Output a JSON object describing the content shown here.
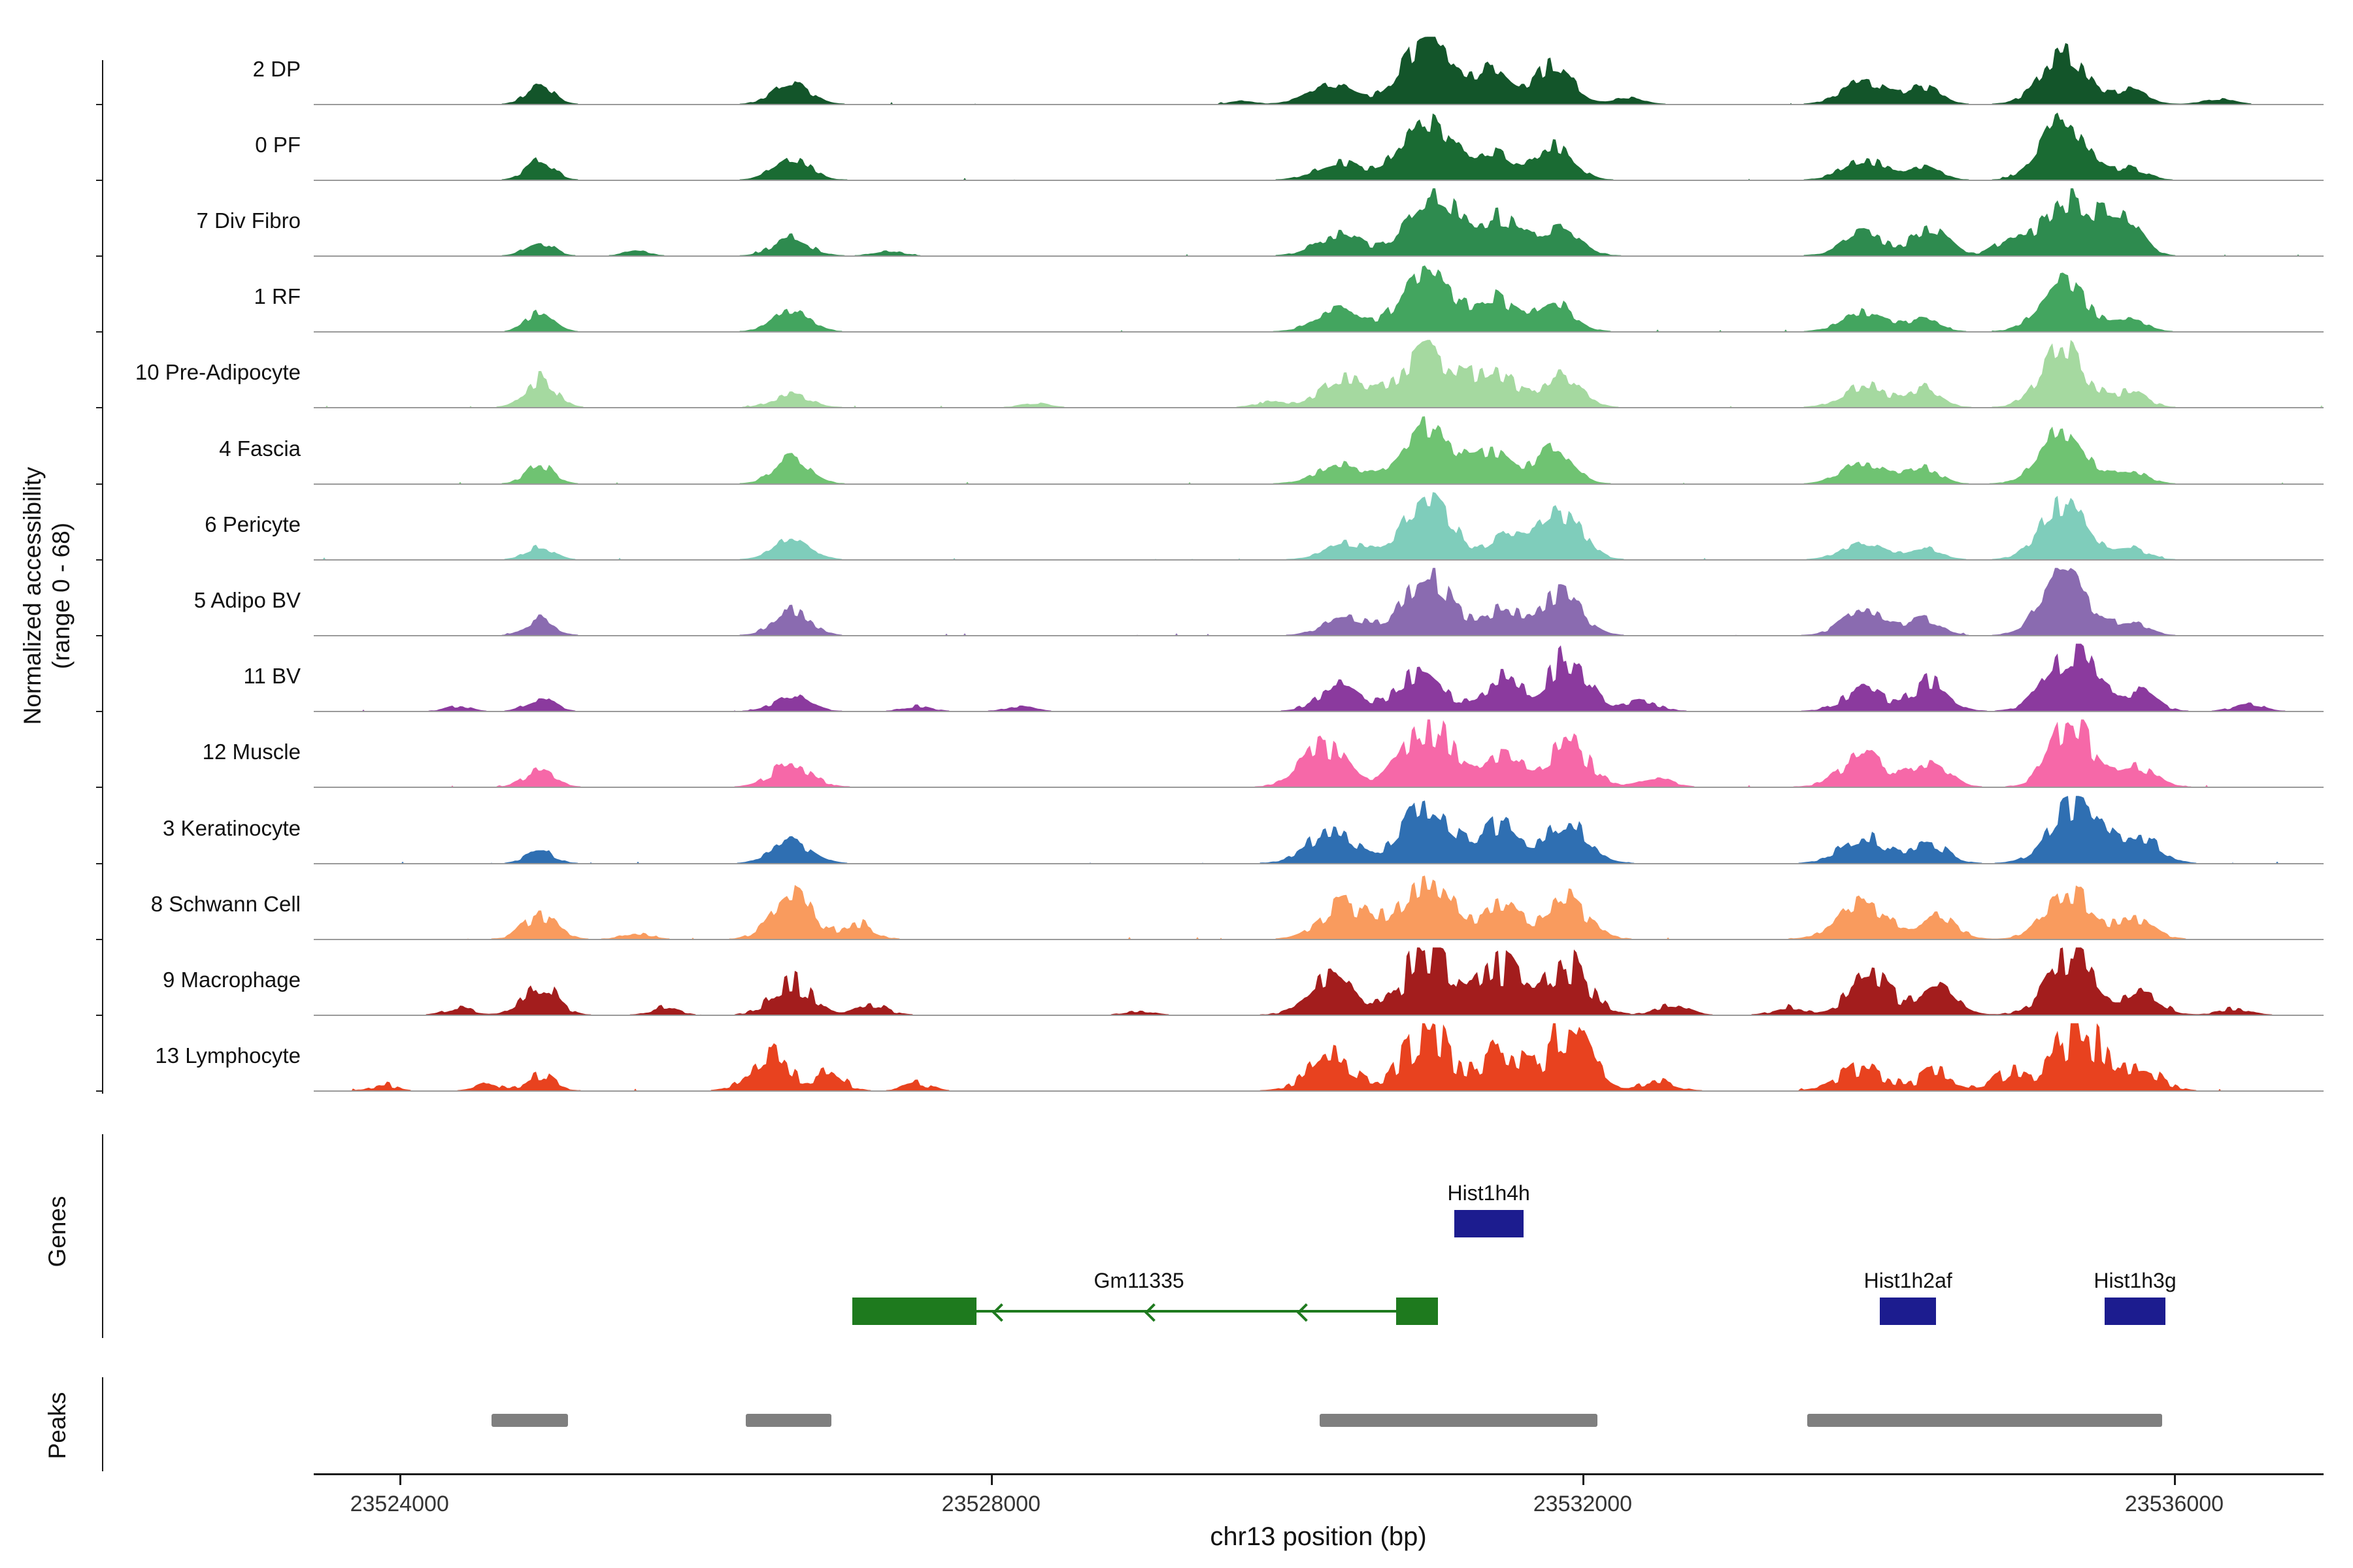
{
  "axis": {
    "y1": "Normalized accessibility",
    "y2": "(range 0 - 68)"
  },
  "sections": {
    "genes": "Genes",
    "peaks": "Peaks"
  },
  "chart_data": {
    "type": "area",
    "title": "",
    "xlabel": "chr13 position (bp)",
    "ylabel": "Normalized accessibility (range 0 - 68)",
    "y_range": [
      0,
      68
    ],
    "x_domain": [
      23523420,
      23537010
    ],
    "x_ticks": [
      23524000,
      23528000,
      23532000,
      23536000
    ],
    "tracks": [
      {
        "label": "2 DP",
        "color": "#13552a",
        "jitter": 0.25,
        "peaks": [
          [
            23524950,
            90,
            0.3
          ],
          [
            23526650,
            120,
            0.34
          ],
          [
            23529700,
            80,
            0.05
          ],
          [
            23530300,
            150,
            0.3
          ],
          [
            23530950,
            170,
            1.0
          ],
          [
            23531400,
            110,
            0.55
          ],
          [
            23531800,
            130,
            0.62
          ],
          [
            23532300,
            100,
            0.1
          ],
          [
            23533900,
            140,
            0.38
          ],
          [
            23534300,
            110,
            0.28
          ],
          [
            23535250,
            150,
            0.8
          ],
          [
            23535700,
            110,
            0.22
          ],
          [
            23536300,
            100,
            0.08
          ]
        ]
      },
      {
        "label": "0 PF",
        "color": "#1a6b33",
        "jitter": 0.25,
        "peaks": [
          [
            23524950,
            90,
            0.33
          ],
          [
            23526650,
            120,
            0.36
          ],
          [
            23530350,
            150,
            0.28
          ],
          [
            23530950,
            170,
            1.0
          ],
          [
            23531400,
            110,
            0.45
          ],
          [
            23531800,
            130,
            0.55
          ],
          [
            23533900,
            140,
            0.33
          ],
          [
            23534300,
            110,
            0.22
          ],
          [
            23535250,
            150,
            0.92
          ],
          [
            23535700,
            110,
            0.18
          ]
        ]
      },
      {
        "label": "7 Div Fibro",
        "color": "#2e8b4f",
        "jitter": 0.3,
        "peaks": [
          [
            23524950,
            90,
            0.22
          ],
          [
            23525600,
            80,
            0.08
          ],
          [
            23526650,
            120,
            0.28
          ],
          [
            23527300,
            90,
            0.08
          ],
          [
            23530350,
            150,
            0.35
          ],
          [
            23531000,
            180,
            1.0
          ],
          [
            23531450,
            130,
            0.55
          ],
          [
            23531850,
            130,
            0.45
          ],
          [
            23533900,
            140,
            0.35
          ],
          [
            23534350,
            120,
            0.42
          ],
          [
            23534900,
            110,
            0.25
          ],
          [
            23535300,
            160,
            0.95
          ],
          [
            23535650,
            120,
            0.55
          ]
        ]
      },
      {
        "label": "1 RF",
        "color": "#43a55f",
        "jitter": 0.25,
        "peaks": [
          [
            23524950,
            90,
            0.3
          ],
          [
            23526650,
            120,
            0.33
          ],
          [
            23530350,
            150,
            0.35
          ],
          [
            23530950,
            170,
            0.95
          ],
          [
            23531400,
            120,
            0.55
          ],
          [
            23531800,
            130,
            0.48
          ],
          [
            23533900,
            140,
            0.3
          ],
          [
            23534300,
            110,
            0.2
          ],
          [
            23535250,
            150,
            0.8
          ],
          [
            23535700,
            110,
            0.18
          ]
        ]
      },
      {
        "label": "10 Pre-Adipocyte",
        "color": "#a5d9a0",
        "jitter": 0.3,
        "peaks": [
          [
            23524950,
            100,
            0.45
          ],
          [
            23526650,
            120,
            0.2
          ],
          [
            23528300,
            90,
            0.06
          ],
          [
            23529900,
            100,
            0.1
          ],
          [
            23530400,
            160,
            0.45
          ],
          [
            23530950,
            180,
            0.85
          ],
          [
            23531400,
            130,
            0.6
          ],
          [
            23531850,
            130,
            0.5
          ],
          [
            23533900,
            140,
            0.35
          ],
          [
            23534300,
            110,
            0.3
          ],
          [
            23535250,
            150,
            0.9
          ],
          [
            23535700,
            110,
            0.25
          ]
        ]
      },
      {
        "label": "4 Fascia",
        "color": "#6fc372",
        "jitter": 0.25,
        "peaks": [
          [
            23524950,
            90,
            0.3
          ],
          [
            23526650,
            120,
            0.4
          ],
          [
            23530350,
            150,
            0.3
          ],
          [
            23530950,
            170,
            0.95
          ],
          [
            23531400,
            120,
            0.5
          ],
          [
            23531800,
            130,
            0.55
          ],
          [
            23533900,
            140,
            0.35
          ],
          [
            23534300,
            110,
            0.25
          ],
          [
            23535250,
            150,
            0.85
          ],
          [
            23535700,
            110,
            0.2
          ]
        ]
      },
      {
        "label": "6 Pericyte",
        "color": "#7fcdbb",
        "jitter": 0.25,
        "peaks": [
          [
            23524950,
            90,
            0.2
          ],
          [
            23526650,
            120,
            0.35
          ],
          [
            23530400,
            140,
            0.25
          ],
          [
            23530950,
            160,
            1.0
          ],
          [
            23531500,
            120,
            0.4
          ],
          [
            23531850,
            140,
            0.75
          ],
          [
            23533900,
            140,
            0.25
          ],
          [
            23534300,
            110,
            0.18
          ],
          [
            23535250,
            150,
            0.9
          ],
          [
            23535700,
            110,
            0.18
          ]
        ]
      },
      {
        "label": "5 Adipo BV",
        "color": "#8a6bb0",
        "jitter": 0.28,
        "peaks": [
          [
            23524950,
            90,
            0.26
          ],
          [
            23526650,
            120,
            0.4
          ],
          [
            23530400,
            140,
            0.3
          ],
          [
            23530950,
            160,
            0.95
          ],
          [
            23531450,
            120,
            0.4
          ],
          [
            23531850,
            140,
            0.65
          ],
          [
            23533900,
            140,
            0.4
          ],
          [
            23534300,
            110,
            0.25
          ],
          [
            23535250,
            150,
            0.95
          ],
          [
            23535700,
            110,
            0.22
          ]
        ]
      },
      {
        "label": "11 BV",
        "color": "#8b3a9e",
        "jitter": 0.35,
        "peaks": [
          [
            23524400,
            80,
            0.08
          ],
          [
            23524950,
            90,
            0.22
          ],
          [
            23526650,
            120,
            0.22
          ],
          [
            23527500,
            90,
            0.08
          ],
          [
            23528200,
            90,
            0.08
          ],
          [
            23530350,
            140,
            0.38
          ],
          [
            23530900,
            150,
            0.6
          ],
          [
            23531450,
            130,
            0.5
          ],
          [
            23531900,
            140,
            0.85
          ],
          [
            23532400,
            110,
            0.15
          ],
          [
            23533900,
            140,
            0.32
          ],
          [
            23534350,
            120,
            0.48
          ],
          [
            23535300,
            160,
            0.95
          ],
          [
            23535750,
            120,
            0.3
          ],
          [
            23536500,
            100,
            0.1
          ]
        ]
      },
      {
        "label": "12 Muscle",
        "color": "#f668a8",
        "jitter": 0.35,
        "peaks": [
          [
            23524950,
            100,
            0.28
          ],
          [
            23526650,
            130,
            0.38
          ],
          [
            23530250,
            150,
            0.62
          ],
          [
            23530950,
            160,
            1.0
          ],
          [
            23531450,
            130,
            0.5
          ],
          [
            23531900,
            140,
            0.7
          ],
          [
            23532500,
            110,
            0.12
          ],
          [
            23533900,
            150,
            0.5
          ],
          [
            23534350,
            120,
            0.38
          ],
          [
            23535300,
            140,
            1.0
          ],
          [
            23535750,
            120,
            0.3
          ]
        ]
      },
      {
        "label": "3 Keratinocyte",
        "color": "#2f6fb2",
        "jitter": 0.3,
        "peaks": [
          [
            23524950,
            90,
            0.2
          ],
          [
            23526650,
            130,
            0.35
          ],
          [
            23530300,
            160,
            0.5
          ],
          [
            23530950,
            170,
            0.9
          ],
          [
            23531450,
            130,
            0.6
          ],
          [
            23531900,
            140,
            0.65
          ],
          [
            23533900,
            150,
            0.42
          ],
          [
            23534350,
            120,
            0.3
          ],
          [
            23535350,
            170,
            1.0
          ],
          [
            23535800,
            120,
            0.35
          ]
        ]
      },
      {
        "label": "8 Schwann Cell",
        "color": "#f99b5e",
        "jitter": 0.35,
        "peaks": [
          [
            23524950,
            110,
            0.38
          ],
          [
            23525600,
            90,
            0.1
          ],
          [
            23526650,
            130,
            0.8
          ],
          [
            23527100,
            100,
            0.25
          ],
          [
            23530400,
            160,
            0.55
          ],
          [
            23530950,
            170,
            0.95
          ],
          [
            23531450,
            130,
            0.5
          ],
          [
            23531900,
            140,
            0.6
          ],
          [
            23533900,
            160,
            0.55
          ],
          [
            23534400,
            120,
            0.35
          ],
          [
            23535300,
            160,
            0.7
          ],
          [
            23535750,
            120,
            0.28
          ]
        ]
      },
      {
        "label": "9 Macrophage",
        "color": "#a31d1d",
        "jitter": 0.45,
        "peaks": [
          [
            23524400,
            90,
            0.12
          ],
          [
            23524950,
            110,
            0.5
          ],
          [
            23525800,
            90,
            0.12
          ],
          [
            23526650,
            130,
            0.55
          ],
          [
            23527200,
            100,
            0.15
          ],
          [
            23529000,
            90,
            0.06
          ],
          [
            23530300,
            150,
            0.6
          ],
          [
            23530950,
            160,
            1.0
          ],
          [
            23531450,
            130,
            0.8
          ],
          [
            23531900,
            140,
            0.85
          ],
          [
            23532600,
            110,
            0.15
          ],
          [
            23533400,
            100,
            0.12
          ],
          [
            23533950,
            150,
            0.55
          ],
          [
            23534400,
            120,
            0.4
          ],
          [
            23535300,
            160,
            0.9
          ],
          [
            23535800,
            120,
            0.35
          ],
          [
            23536400,
            100,
            0.1
          ]
        ]
      },
      {
        "label": "13 Lymphocyte",
        "color": "#e8421f",
        "jitter": 0.5,
        "peaks": [
          [
            23523900,
            80,
            0.1
          ],
          [
            23524600,
            80,
            0.12
          ],
          [
            23524950,
            100,
            0.22
          ],
          [
            23526500,
            130,
            0.55
          ],
          [
            23526900,
            100,
            0.3
          ],
          [
            23527500,
            90,
            0.12
          ],
          [
            23530300,
            150,
            0.5
          ],
          [
            23530950,
            160,
            0.9
          ],
          [
            23531450,
            130,
            0.6
          ],
          [
            23531900,
            150,
            0.95
          ],
          [
            23532500,
            110,
            0.15
          ],
          [
            23533900,
            150,
            0.38
          ],
          [
            23534400,
            120,
            0.3
          ],
          [
            23534900,
            110,
            0.3
          ],
          [
            23535350,
            150,
            1.05
          ],
          [
            23535800,
            120,
            0.35
          ]
        ]
      }
    ],
    "genes": [
      {
        "name": "Hist1h4h",
        "color": "#1c1c8f",
        "row": 0,
        "exons": [
          [
            23531130,
            23531600
          ]
        ],
        "label_bp": 23531365
      },
      {
        "name": "Gm11335",
        "color": "#1e7a1e",
        "row": 1,
        "strand": "-",
        "exons": [
          [
            23527060,
            23527900
          ],
          [
            23530740,
            23531020
          ]
        ],
        "line": [
          23527900,
          23530740
        ],
        "arrows_bp": [
          23528060,
          23529090,
          23530120
        ],
        "label_bp": 23529000
      },
      {
        "name": "Hist1h2af",
        "color": "#1c1c8f",
        "row": 1,
        "exons": [
          [
            23534010,
            23534390
          ]
        ],
        "label_bp": 23534200
      },
      {
        "name": "Hist1h3g",
        "color": "#1c1c8f",
        "row": 1,
        "exons": [
          [
            23535530,
            23535940
          ]
        ],
        "label_bp": 23535735
      }
    ],
    "peak_regions": [
      [
        23524620,
        23525140
      ],
      [
        23526340,
        23526920
      ],
      [
        23530220,
        23532100
      ],
      [
        23533520,
        23535920
      ]
    ]
  }
}
